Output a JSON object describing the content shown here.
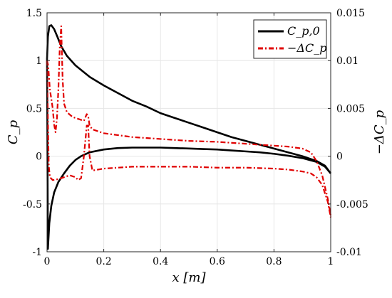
{
  "chart_data": {
    "type": "line",
    "xlabel": "x [m]",
    "ylabel_left": "C_p",
    "ylabel_right": "−ΔC_p",
    "xlim": [
      0,
      1
    ],
    "ylim_left": [
      -1,
      1.5
    ],
    "ylim_right": [
      -0.01,
      0.015
    ],
    "x_ticks": [
      "0",
      "0.2",
      "0.4",
      "0.6",
      "0.8",
      "1"
    ],
    "y_left_ticks": [
      "-1",
      "-0.5",
      "0",
      "0.5",
      "1",
      "1.5"
    ],
    "y_right_ticks": [
      "-0.01",
      "-0.005",
      "0",
      "0.005",
      "0.01",
      "0.015"
    ],
    "grid": true,
    "legend_position": "top-right",
    "series": [
      {
        "name": "C_p,0",
        "axis": "left",
        "color": "#000000",
        "style": "solid",
        "segments": [
          {
            "x": [
              0.0,
              0.003,
              0.008,
              0.015,
              0.025,
              0.035,
              0.05,
              0.07,
              0.1,
              0.15,
              0.2,
              0.25,
              0.3,
              0.35,
              0.4,
              0.45,
              0.5,
              0.55,
              0.6,
              0.65,
              0.7,
              0.75,
              0.8,
              0.85,
              0.9,
              0.95,
              0.98,
              1.0
            ],
            "y": [
              1.02,
              1.25,
              1.36,
              1.37,
              1.33,
              1.26,
              1.15,
              1.05,
              0.95,
              0.83,
              0.74,
              0.66,
              0.58,
              0.52,
              0.45,
              0.4,
              0.35,
              0.3,
              0.25,
              0.2,
              0.16,
              0.12,
              0.08,
              0.04,
              0.0,
              -0.05,
              -0.1,
              -0.18
            ]
          },
          {
            "x": [
              0.0,
              0.003,
              0.008,
              0.015,
              0.025,
              0.04,
              0.06,
              0.08,
              0.1,
              0.12,
              0.15,
              0.2,
              0.25,
              0.3,
              0.35,
              0.4,
              0.45,
              0.5,
              0.55,
              0.6,
              0.65,
              0.7,
              0.75,
              0.8,
              0.85,
              0.9,
              0.95,
              0.98,
              1.0
            ],
            "y": [
              1.02,
              -0.97,
              -0.7,
              -0.52,
              -0.38,
              -0.27,
              -0.18,
              -0.1,
              -0.04,
              0.0,
              0.04,
              0.07,
              0.085,
              0.09,
              0.09,
              0.09,
              0.085,
              0.08,
              0.075,
              0.07,
              0.06,
              0.05,
              0.04,
              0.025,
              0.005,
              -0.02,
              -0.06,
              -0.11,
              -0.18
            ]
          }
        ]
      },
      {
        "name": "−ΔC_p",
        "axis": "right",
        "color": "#e00000",
        "style": "dashdot",
        "segments": [
          {
            "x": [
              0.0,
              0.004,
              0.01,
              0.02,
              0.025,
              0.03,
              0.035,
              0.04,
              0.045,
              0.05,
              0.052,
              0.055,
              0.06,
              0.07,
              0.09,
              0.11,
              0.13,
              0.14,
              0.145,
              0.15,
              0.16,
              0.2,
              0.3,
              0.4,
              0.5,
              0.6,
              0.7,
              0.8,
              0.85,
              0.9,
              0.93,
              0.95,
              0.97,
              0.99,
              1.0
            ],
            "y": [
              0.01,
              0.0095,
              0.007,
              0.005,
              0.0033,
              0.0025,
              0.004,
              0.007,
              0.0115,
              0.0136,
              0.0112,
              0.008,
              0.0055,
              0.0046,
              0.0041,
              0.0039,
              0.0037,
              0.0044,
              0.0042,
              0.0032,
              0.0028,
              0.0024,
              0.002,
              0.0018,
              0.0016,
              0.0015,
              0.0013,
              0.0011,
              0.001,
              0.0008,
              0.0004,
              -0.0005,
              -0.002,
              -0.0045,
              -0.0062
            ]
          },
          {
            "x": [
              0.0,
              0.003,
              0.006,
              0.01,
              0.02,
              0.04,
              0.06,
              0.08,
              0.1,
              0.11,
              0.12,
              0.13,
              0.14,
              0.145,
              0.15,
              0.16,
              0.18,
              0.2,
              0.3,
              0.4,
              0.5,
              0.6,
              0.7,
              0.8,
              0.85,
              0.9,
              0.93,
              0.95,
              0.97,
              0.99,
              1.0
            ],
            "y": [
              0.01,
              0.004,
              -0.001,
              -0.0022,
              -0.0025,
              -0.0024,
              -0.0022,
              -0.002,
              -0.0022,
              -0.0025,
              -0.0023,
              0.0,
              0.0032,
              0.0032,
              0.0,
              -0.0015,
              -0.0014,
              -0.0013,
              -0.0011,
              -0.0011,
              -0.0011,
              -0.0012,
              -0.0012,
              -0.0013,
              -0.0014,
              -0.0016,
              -0.0018,
              -0.0022,
              -0.003,
              -0.0048,
              -0.0064
            ]
          }
        ]
      }
    ]
  }
}
